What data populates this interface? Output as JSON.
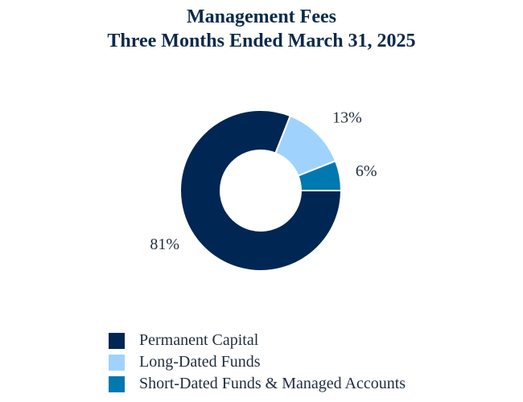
{
  "chart_data": {
    "type": "pie",
    "title_lines": [
      "Management Fees",
      "Three Months Ended March 31, 2025"
    ],
    "categories": [
      "Permanent Capital",
      "Long-Dated Funds",
      "Short-Dated Funds & Managed Accounts"
    ],
    "values": [
      81,
      13,
      6
    ],
    "data_labels": [
      "81%",
      "13%",
      "6%"
    ],
    "colors": [
      "#002654",
      "#9fd3fd",
      "#0078b0"
    ],
    "donut": true,
    "legend_position": "bottom"
  }
}
